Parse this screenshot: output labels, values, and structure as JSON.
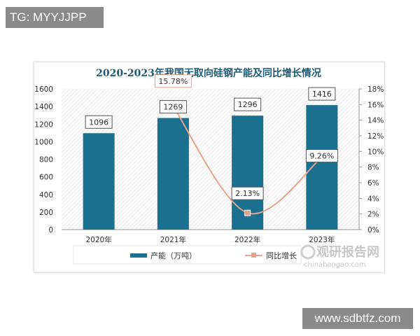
{
  "overlays": {
    "top_left_label": "TG: MYYJJPP",
    "bottom_right_label": "www.sdbtfz.com"
  },
  "watermark": {
    "logo_text": "观研报告网",
    "domain": "chinabaogao.com"
  },
  "colors": {
    "bar": "#1b6f8f",
    "line": "#e8a58a",
    "title": "#1d5a74"
  },
  "chart_data": {
    "type": "bar+line",
    "title": "2020-2023年我国无取向硅钢产能及同比增长情况",
    "categories": [
      "2020年",
      "2021年",
      "2022年",
      "2023年"
    ],
    "series": [
      {
        "name": "产能（万吨）",
        "type": "bar",
        "axis": "left",
        "values": [
          1096,
          1269,
          1296,
          1416
        ],
        "labels": [
          "1096",
          "1269",
          "1296",
          "1416"
        ]
      },
      {
        "name": "同比增长",
        "type": "line",
        "axis": "right",
        "values": [
          null,
          15.78,
          2.13,
          9.26
        ],
        "labels": [
          "",
          "15.78%",
          "2.13%",
          "9.26%"
        ]
      }
    ],
    "y_left": {
      "range": [
        0,
        1600
      ],
      "ticks": [
        "0",
        "200",
        "400",
        "600",
        "800",
        "1000",
        "1200",
        "1400",
        "1600"
      ]
    },
    "y_right": {
      "range": [
        0,
        18
      ],
      "ticks": [
        "0%",
        "2%",
        "4%",
        "6%",
        "8%",
        "10%",
        "12%",
        "14%",
        "16%",
        "18%"
      ]
    },
    "grid": false,
    "legend": "bottom"
  }
}
